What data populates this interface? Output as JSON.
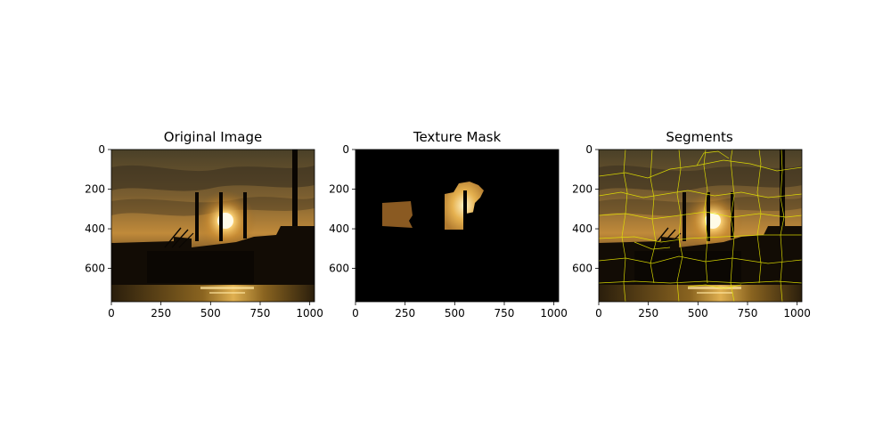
{
  "chart_data": [
    {
      "type": "image",
      "title": "Original Image",
      "xticks": [
        "0",
        "250",
        "500",
        "750",
        "1000"
      ],
      "yticks": [
        "0",
        "200",
        "400",
        "600"
      ],
      "xlim": [
        0,
        1024
      ],
      "ylim": [
        768,
        0
      ]
    },
    {
      "type": "image",
      "title": "Texture Mask",
      "xticks": [
        "0",
        "250",
        "500",
        "750",
        "1000"
      ],
      "yticks": [
        "0",
        "200",
        "400",
        "600"
      ],
      "xlim": [
        0,
        1024
      ],
      "ylim": [
        768,
        0
      ]
    },
    {
      "type": "image",
      "title": "Segments",
      "xticks": [
        "0",
        "250",
        "500",
        "750",
        "1000"
      ],
      "yticks": [
        "0",
        "200",
        "400",
        "600"
      ],
      "xlim": [
        0,
        1024
      ],
      "ylim": [
        768,
        0
      ],
      "boundary_color": "#e6e600"
    }
  ]
}
